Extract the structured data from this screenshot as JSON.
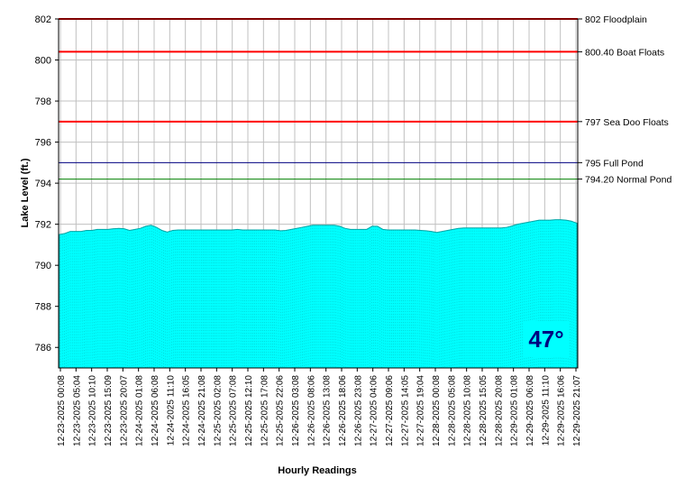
{
  "chart_data": {
    "type": "area",
    "xlabel": "Hourly Readings",
    "ylabel": "Lake Level (ft.)",
    "ylim": [
      785,
      802
    ],
    "y_ticks": [
      786,
      788,
      790,
      792,
      794,
      796,
      798,
      800,
      802
    ],
    "grid": true,
    "fill_color": "#00ffff",
    "x_tick_labels": [
      "12-23-2025 00:08",
      "12-23-2025 05:04",
      "12-23-2025 10:10",
      "12-23-2025 15:09",
      "12-23-2025 20:07",
      "12-24-2025 01:08",
      "12-24-2025 06:08",
      "12-24-2025 11:10",
      "12-24-2025 16:05",
      "12-24-2025 21:08",
      "12-25-2025 02:08",
      "12-25-2025 07:08",
      "12-25-2025 12:10",
      "12-25-2025 17:08",
      "12-25-2025 22:06",
      "12-26-2025 03:08",
      "12-26-2025 08:06",
      "12-26-2025 13:08",
      "12-26-2025 18:06",
      "12-26-2025 23:08",
      "12-27-2025 04:06",
      "12-27-2025 09:06",
      "12-27-2025 14:05",
      "12-27-2025 19:04",
      "12-28-2025 00:08",
      "12-28-2025 05:08",
      "12-28-2025 10:08",
      "12-28-2025 15:05",
      "12-28-2025 20:08",
      "12-29-2025 01:08",
      "12-29-2025 06:08",
      "12-29-2025 11:10",
      "12-29-2025 16:06",
      "12-29-2025 21:07"
    ],
    "series": [
      {
        "values": [
          791.5,
          791.55,
          791.65,
          791.65,
          791.65,
          791.7,
          791.7,
          791.75,
          791.75,
          791.75,
          791.78,
          791.8,
          791.78,
          791.7,
          791.75,
          791.8,
          791.9,
          791.95,
          791.85,
          791.7,
          791.62,
          791.7,
          791.72,
          791.72,
          791.72,
          791.72,
          791.72,
          791.72,
          791.72,
          791.72,
          791.72,
          791.72,
          791.72,
          791.75,
          791.72,
          791.72,
          791.72,
          791.72,
          791.72,
          791.72,
          791.72,
          791.68,
          791.7,
          791.75,
          791.8,
          791.85,
          791.9,
          791.95,
          791.95,
          791.95,
          791.95,
          791.95,
          791.9,
          791.8,
          791.75,
          791.75,
          791.75,
          791.75,
          791.9,
          791.9,
          791.75,
          791.72,
          791.72,
          791.72,
          791.72,
          791.72,
          791.72,
          791.7,
          791.68,
          791.65,
          791.6,
          791.65,
          791.7,
          791.75,
          791.8,
          791.82,
          791.82,
          791.82,
          791.82,
          791.82,
          791.82,
          791.82,
          791.82,
          791.85,
          791.92,
          792.0,
          792.05,
          792.1,
          792.15,
          792.2,
          792.2,
          792.2,
          792.22,
          792.22,
          792.2,
          792.15,
          792.05
        ]
      }
    ],
    "reference_lines": [
      {
        "value": 802,
        "label": "802 Floodplain",
        "color": "#ff0000"
      },
      {
        "value": 800.4,
        "label": "800.40 Boat Floats",
        "color": "#ff0000"
      },
      {
        "value": 797,
        "label": "797 Sea Doo Floats",
        "color": "#ff0000"
      },
      {
        "value": 795,
        "label": "795 Full Pond",
        "color": "#000080"
      },
      {
        "value": 794.2,
        "label": "794.20 Normal Pond",
        "color": "#008000"
      }
    ],
    "annotation": "47°"
  }
}
